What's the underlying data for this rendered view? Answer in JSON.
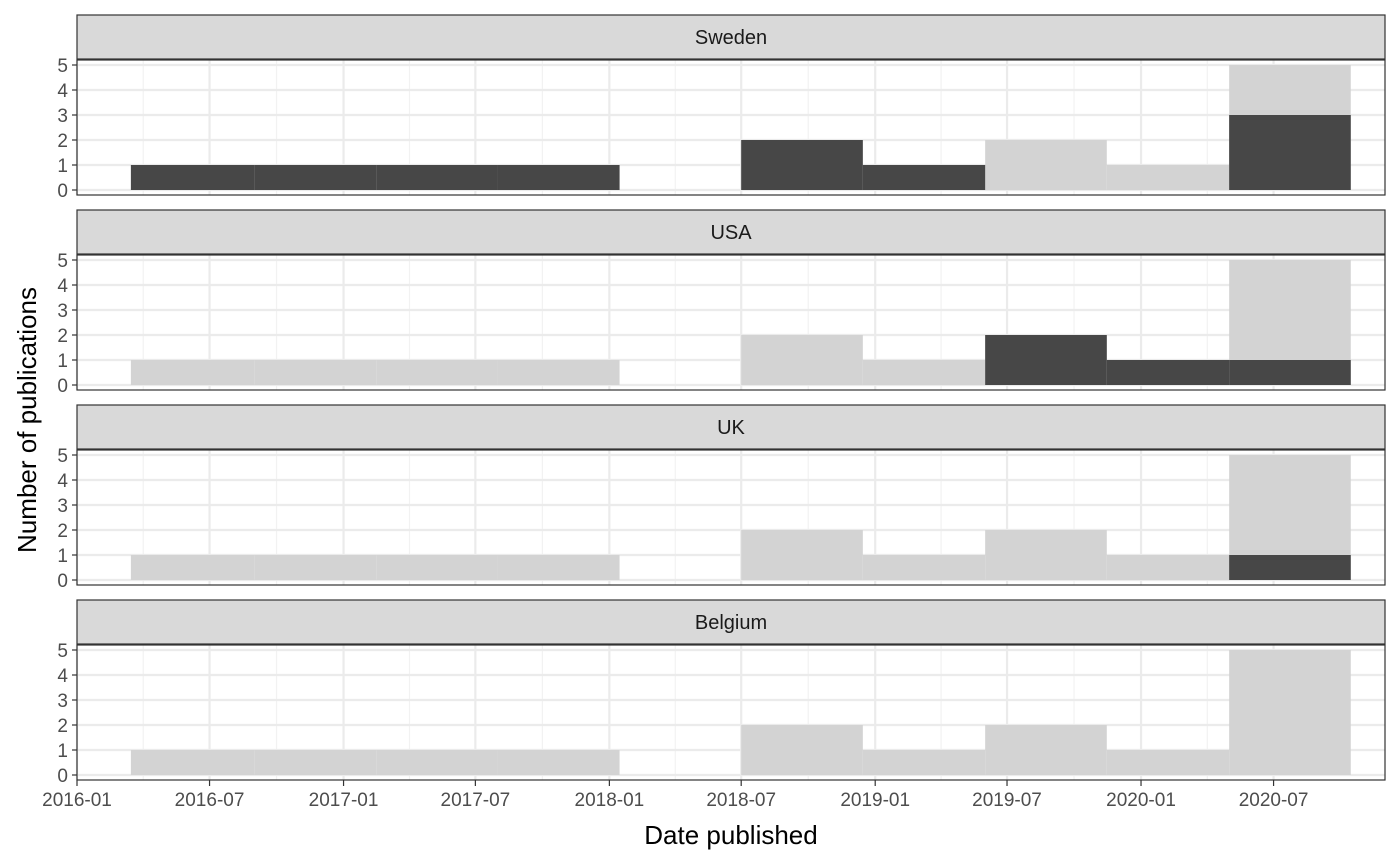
{
  "chart_data": {
    "type": "bar",
    "subtype": "faceted histogram (foreground country counts over grey background totals)",
    "xlabel": "Date published",
    "ylabel": "Number of publications",
    "xlim": [
      "2016-01-01",
      "2020-12-01"
    ],
    "ylim": [
      0,
      5
    ],
    "x_ticks": [
      "2016-01",
      "2016-07",
      "2017-01",
      "2017-07",
      "2018-01",
      "2018-07",
      "2019-01",
      "2019-07",
      "2020-01",
      "2020-07"
    ],
    "y_ticks": [
      "0",
      "1",
      "2",
      "3",
      "4",
      "5"
    ],
    "grid": true,
    "bins": [
      {
        "start": "2016-03-15",
        "end": "2016-09-01"
      },
      {
        "start": "2016-09-01",
        "end": "2017-02-15"
      },
      {
        "start": "2017-02-15",
        "end": "2017-08-01"
      },
      {
        "start": "2017-08-01",
        "end": "2018-01-15"
      },
      {
        "start": "2018-01-15",
        "end": "2018-07-01"
      },
      {
        "start": "2018-07-01",
        "end": "2018-12-15"
      },
      {
        "start": "2018-12-15",
        "end": "2019-06-01"
      },
      {
        "start": "2019-06-01",
        "end": "2019-11-15"
      },
      {
        "start": "2019-11-15",
        "end": "2020-05-01"
      },
      {
        "start": "2020-05-01",
        "end": "2020-10-15"
      }
    ],
    "background_totals": [
      1,
      1,
      1,
      1,
      0,
      2,
      1,
      2,
      1,
      5
    ],
    "series": [
      {
        "name": "Sweden",
        "values": [
          1,
          1,
          1,
          1,
          0,
          2,
          1,
          0,
          0,
          3
        ]
      },
      {
        "name": "USA",
        "values": [
          0,
          0,
          0,
          0,
          0,
          0,
          0,
          2,
          1,
          1
        ]
      },
      {
        "name": "UK",
        "values": [
          0,
          0,
          0,
          0,
          0,
          0,
          0,
          0,
          0,
          1
        ]
      },
      {
        "name": "Belgium",
        "values": [
          0,
          0,
          0,
          0,
          0,
          0,
          0,
          0,
          0,
          0
        ]
      }
    ],
    "colors": {
      "background_bar": "#d3d3d3",
      "foreground_bar": "#474747",
      "strip_fill": "#d9d9d9",
      "grid": "#ebebeb",
      "panel_border": "#333333"
    }
  }
}
